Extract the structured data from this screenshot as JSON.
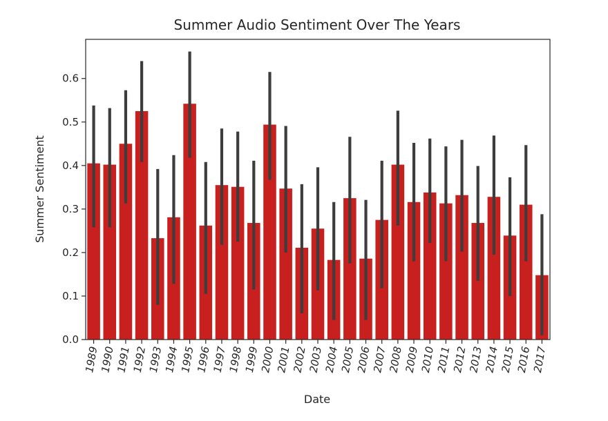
{
  "chart_data": {
    "type": "bar",
    "title": "Summer Audio Sentiment Over The Years",
    "xlabel": "Date",
    "ylabel": "Summer Sentiment",
    "ylim": [
      0,
      0.69
    ],
    "yticks": [
      "0.0",
      "0.1",
      "0.2",
      "0.3",
      "0.4",
      "0.5",
      "0.6"
    ],
    "grid": false,
    "bar_color": "#c8201e",
    "errorbar_color": "#3d3d3d",
    "categories": [
      "1989",
      "1990",
      "1991",
      "1992",
      "1993",
      "1994",
      "1995",
      "1996",
      "1997",
      "1998",
      "1999",
      "2000",
      "2001",
      "2002",
      "2003",
      "2004",
      "2005",
      "2006",
      "2007",
      "2008",
      "2009",
      "2010",
      "2011",
      "2012",
      "2013",
      "2014",
      "2015",
      "2016",
      "2017"
    ],
    "values": [
      0.405,
      0.402,
      0.45,
      0.525,
      0.233,
      0.281,
      0.542,
      0.262,
      0.355,
      0.351,
      0.268,
      0.494,
      0.347,
      0.211,
      0.255,
      0.183,
      0.325,
      0.186,
      0.275,
      0.402,
      0.316,
      0.338,
      0.313,
      0.332,
      0.268,
      0.328,
      0.239,
      0.31,
      0.148
    ],
    "ci_low": [
      0.258,
      0.258,
      0.313,
      0.408,
      0.08,
      0.128,
      0.418,
      0.105,
      0.218,
      0.225,
      0.115,
      0.367,
      0.2,
      0.06,
      0.113,
      0.045,
      0.175,
      0.045,
      0.118,
      0.262,
      0.18,
      0.222,
      0.18,
      0.202,
      0.135,
      0.195,
      0.1,
      0.18,
      0.01
    ],
    "ci_high": [
      0.538,
      0.532,
      0.573,
      0.64,
      0.392,
      0.424,
      0.662,
      0.408,
      0.485,
      0.478,
      0.411,
      0.615,
      0.491,
      0.357,
      0.396,
      0.316,
      0.466,
      0.321,
      0.411,
      0.526,
      0.452,
      0.462,
      0.444,
      0.459,
      0.399,
      0.469,
      0.373,
      0.447,
      0.288
    ]
  }
}
